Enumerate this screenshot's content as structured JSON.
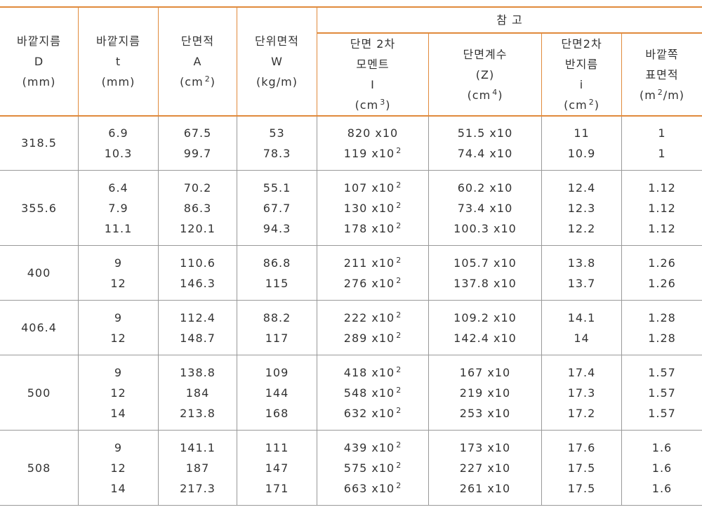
{
  "table": {
    "group_title": "참 고",
    "columns": [
      [
        "바깥지름",
        "D",
        "(mm)"
      ],
      [
        "바깥지름",
        "t",
        "(mm)"
      ],
      [
        "단면적",
        "A",
        {
          "pre": "(cm",
          "sup": "2",
          "post": ")"
        }
      ],
      [
        "단위면적",
        "W",
        "(kg/m)"
      ],
      [
        "단면 2차",
        "모멘트",
        "I",
        {
          "pre": "(cm",
          "sup": "3",
          "post": ")"
        }
      ],
      [
        "단면계수",
        "(Z)",
        {
          "pre": "(cm",
          "sup": "4",
          "post": ")"
        }
      ],
      [
        "단면2차",
        "반지름",
        "i",
        {
          "pre": "(cm",
          "sup": "2",
          "post": ")"
        }
      ],
      [
        "바깥쪽",
        "표면적",
        {
          "pre": "(m",
          "sup": "2",
          "post": "/m)"
        }
      ]
    ],
    "rows": [
      {
        "d": "318.5",
        "lines": [
          [
            "6.9",
            "67.5",
            "53",
            "820 x10",
            "51.5 x10",
            "11",
            "1"
          ],
          [
            "10.3",
            "99.7",
            "78.3",
            {
              "pre": "119 x10",
              "sup": "2"
            },
            "74.4 x10",
            "10.9",
            "1"
          ]
        ]
      },
      {
        "d": "355.6",
        "lines": [
          [
            "6.4",
            "70.2",
            "55.1",
            {
              "pre": "107 x10",
              "sup": "2"
            },
            "60.2 x10",
            "12.4",
            "1.12"
          ],
          [
            "7.9",
            "86.3",
            "67.7",
            {
              "pre": "130 x10",
              "sup": "2"
            },
            "73.4 x10",
            "12.3",
            "1.12"
          ],
          [
            "11.1",
            "120.1",
            "94.3",
            {
              "pre": "178 x10",
              "sup": "2"
            },
            "100.3 x10",
            "12.2",
            "1.12"
          ]
        ]
      },
      {
        "d": "400",
        "lines": [
          [
            "9",
            "110.6",
            "86.8",
            {
              "pre": "211 x10",
              "sup": "2"
            },
            "105.7 x10",
            "13.8",
            "1.26"
          ],
          [
            "12",
            "146.3",
            "115",
            {
              "pre": "276 x10",
              "sup": "2"
            },
            "137.8 x10",
            "13.7",
            "1.26"
          ]
        ]
      },
      {
        "d": "406.4",
        "lines": [
          [
            "9",
            "112.4",
            "88.2",
            {
              "pre": "222 x10",
              "sup": "2"
            },
            "109.2 x10",
            "14.1",
            "1.28"
          ],
          [
            "12",
            "148.7",
            "117",
            {
              "pre": "289 x10",
              "sup": "2"
            },
            "142.4 x10",
            "14",
            "1.28"
          ]
        ]
      },
      {
        "d": "500",
        "lines": [
          [
            "9",
            "138.8",
            "109",
            {
              "pre": "418 x10",
              "sup": "2"
            },
            "167 x10",
            "17.4",
            "1.57"
          ],
          [
            "12",
            "184",
            "144",
            {
              "pre": "548 x10",
              "sup": "2"
            },
            "219 x10",
            "17.3",
            "1.57"
          ],
          [
            "14",
            "213.8",
            "168",
            {
              "pre": "632 x10",
              "sup": "2"
            },
            "253 x10",
            "17.2",
            "1.57"
          ]
        ]
      },
      {
        "d": "508",
        "lines": [
          [
            "9",
            "141.1",
            "111",
            {
              "pre": "439 x10",
              "sup": "2"
            },
            "173 x10",
            "17.6",
            "1.6"
          ],
          [
            "12",
            "187",
            "147",
            {
              "pre": "575 x10",
              "sup": "2"
            },
            "227 x10",
            "17.5",
            "1.6"
          ],
          [
            "14",
            "217.3",
            "171",
            {
              "pre": "663 x10",
              "sup": "2"
            },
            "261 x10",
            "17.5",
            "1.6"
          ]
        ]
      }
    ]
  }
}
